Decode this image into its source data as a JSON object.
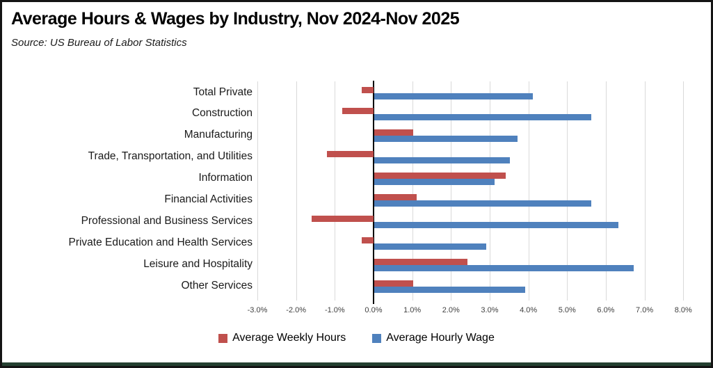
{
  "title": "Average Hours & Wages by Industry, Nov 2024-Nov 2025",
  "source": "Source:  US Bureau of Labor Statistics",
  "legend": {
    "weekly_hours_label": "Average Weekly Hours",
    "hourly_wage_label": "Average Hourly Wage"
  },
  "colors": {
    "weekly_hours": "#C0504D",
    "hourly_wage": "#4F81BD",
    "gridline": "#D9D9D9",
    "axis": "#000000",
    "frame_border": "#141414",
    "frame_bottom_strip": "#254031"
  },
  "chart_data": {
    "type": "bar",
    "orientation": "horizontal",
    "title": "Average Hours & Wages by Industry, Nov 2024-Nov 2025",
    "subtitle": "Source:  US Bureau of Labor Statistics",
    "grid": true,
    "legend_position": "bottom",
    "categories": [
      "Total Private",
      "Construction",
      "Manufacturing",
      "Trade, Transportation, and Utilities",
      "Information",
      "Financial Activities",
      "Professional and Business Services",
      "Private Education and Health Services",
      "Leisure and Hospitality",
      "Other Services"
    ],
    "series": [
      {
        "name": "Average Weekly Hours",
        "color": "#C0504D",
        "values": [
          -0.3,
          -0.8,
          1.0,
          -1.2,
          3.4,
          1.1,
          -1.6,
          -0.3,
          2.4,
          1.0
        ]
      },
      {
        "name": "Average Hourly Wage",
        "color": "#4F81BD",
        "values": [
          4.1,
          5.6,
          3.7,
          3.5,
          3.1,
          5.6,
          6.3,
          2.9,
          6.7,
          3.9
        ]
      }
    ],
    "x_axis": {
      "min": -3.0,
      "max": 8.0,
      "tick_step": 1.0,
      "unit": "percent",
      "tick_labels": [
        "-3.0%",
        "-2.0%",
        "-1.0%",
        "0.0%",
        "1.0%",
        "2.0%",
        "3.0%",
        "4.0%",
        "5.0%",
        "6.0%",
        "7.0%",
        "8.0%"
      ]
    }
  }
}
